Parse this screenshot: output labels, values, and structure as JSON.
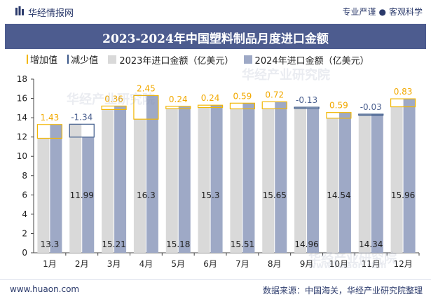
{
  "header": {
    "brand": "华经情报网",
    "tagline_left": "专业严谨",
    "tagline_right": "客观科学"
  },
  "footer": {
    "site": "www.huaon.com",
    "source": "数据来源：中国海关，华经产业研究院整理"
  },
  "watermark": {
    "text": "华经产业研究院",
    "url": "www.huaon.com"
  },
  "colors": {
    "title_bg": "#4d5c8f",
    "increase": "#f2b705",
    "decrease": "#3d5a8a",
    "bar2023": "#d9d9d9",
    "bar2024": "#9ea9c6",
    "increase_label": "#f2a900",
    "decrease_label": "#4a5f8f"
  },
  "chart_data": {
    "type": "bar",
    "title": "2023-2024年中国塑料制品月度进口金额",
    "categories": [
      "1月",
      "2月",
      "3月",
      "4月",
      "5月",
      "6月",
      "7月",
      "8月",
      "9月",
      "10月",
      "11月",
      "12月"
    ],
    "series": [
      {
        "name": "2023年进口金额（亿美元）",
        "values": [
          11.87,
          13.33,
          14.85,
          13.85,
          14.94,
          15.06,
          14.92,
          14.93,
          15.09,
          13.95,
          14.37,
          15.13
        ]
      },
      {
        "name": "2024年进口金额（亿美元）",
        "values": [
          13.3,
          11.99,
          15.21,
          16.3,
          15.18,
          15.3,
          15.51,
          15.65,
          14.96,
          14.54,
          14.34,
          15.96
        ]
      }
    ],
    "value_labels_2024": [
      "13.3",
      "11.99",
      "15.21",
      "16.3",
      "15.18",
      "15.3",
      "15.51",
      "15.65",
      "14.96",
      "14.54",
      "14.34",
      "15.96"
    ],
    "change": {
      "values": [
        1.43,
        -1.34,
        0.36,
        2.45,
        0.24,
        0.24,
        0.59,
        0.72,
        -0.13,
        0.59,
        -0.03,
        0.83
      ],
      "labels": [
        "1.43",
        "-1.34",
        "0.36",
        "2.45",
        "0.24",
        "0.24",
        "0.59",
        "0.72",
        "-0.13",
        "0.59",
        "-0.03",
        "0.83"
      ]
    },
    "legend": [
      "增加值",
      "减少值",
      "2023年进口金额（亿美元）",
      "2024年进口金额（亿美元）"
    ],
    "ylim": [
      0,
      18
    ],
    "yticks": [
      0,
      2,
      4,
      6,
      8,
      10,
      12,
      14,
      16,
      18
    ],
    "xlabel": "",
    "ylabel": "",
    "grid": false,
    "legend_position": "top-left"
  }
}
